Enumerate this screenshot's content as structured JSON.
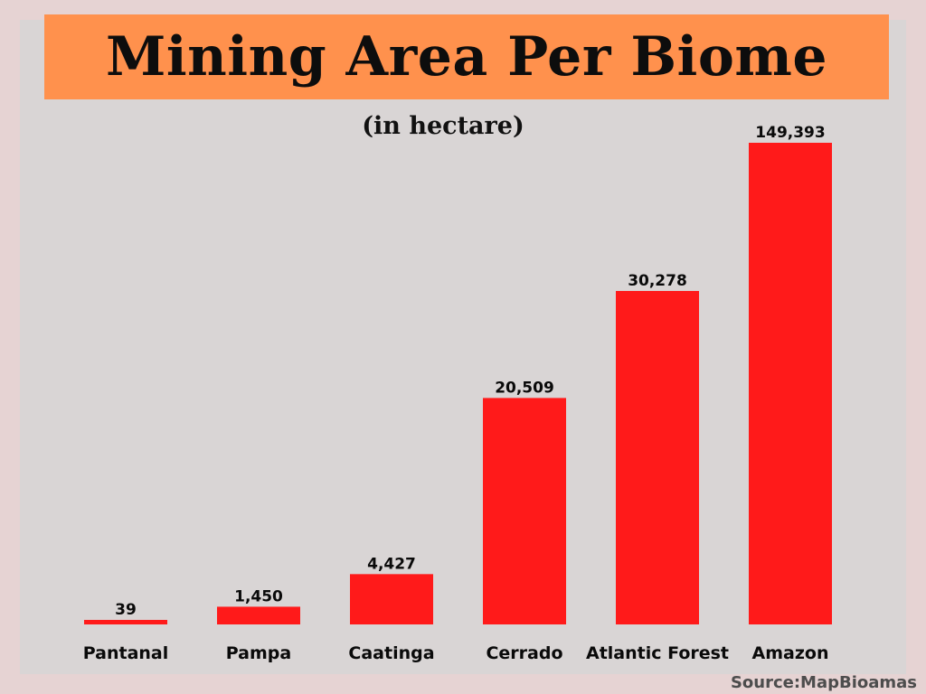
{
  "chart_data": {
    "type": "bar",
    "title": "Mining Area Per Biome",
    "subtitle": "(in hectare)",
    "categories": [
      "Pantanal",
      "Pampa",
      "Caatinga",
      "Cerrado",
      "Atlantic Forest",
      "Amazon"
    ],
    "values": [
      39,
      1450,
      4427,
      20509,
      30278,
      149393
    ],
    "value_labels": [
      "39",
      "1,450",
      "4,427",
      "20,509",
      "30,278",
      "149,393"
    ],
    "scale": "nonlinear",
    "xlabel": "",
    "ylabel": "",
    "grid": false,
    "legend": "none"
  },
  "colors": {
    "bar": "#ff1a1a",
    "banner": "#ff914d",
    "panel": "#d9d5d5",
    "background": "#e6d3d3"
  },
  "source": "Source:MapBioamas"
}
